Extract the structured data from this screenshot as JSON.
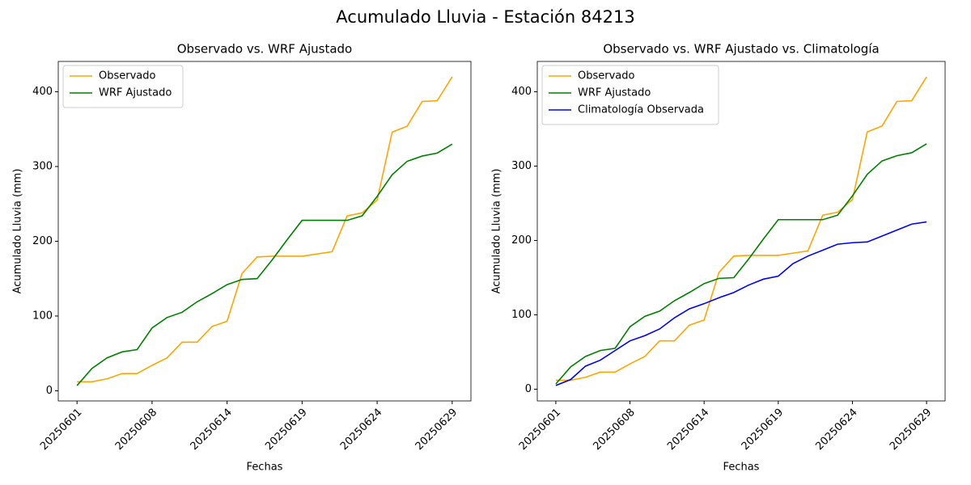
{
  "title": "Acumulado Lluvia - Estación 84213",
  "chart_data": [
    {
      "type": "line",
      "title": "Observado vs. WRF Ajustado",
      "xlabel": "Fechas",
      "ylabel": "Acumulado Lluvia (mm)",
      "categories": [
        "20250601",
        null,
        null,
        null,
        null,
        "20250608",
        null,
        null,
        null,
        null,
        "20250614",
        null,
        null,
        null,
        null,
        "20250619",
        null,
        null,
        null,
        null,
        "20250624",
        null,
        null,
        null,
        null,
        "20250629"
      ],
      "series": [
        {
          "name": "Observado",
          "color": "orange",
          "values": [
            12,
            12,
            16,
            23,
            23,
            34,
            44,
            65,
            65,
            86,
            93,
            157,
            179,
            180,
            180,
            180,
            183,
            186,
            234,
            238,
            255,
            346,
            354,
            387,
            388,
            420
          ]
        },
        {
          "name": "WRF Ajustado",
          "color": "green",
          "values": [
            7,
            30,
            44,
            52,
            55,
            84,
            98,
            105,
            119,
            130,
            142,
            149,
            150,
            175,
            202,
            228,
            228,
            228,
            228,
            234,
            260,
            289,
            307,
            314,
            318,
            330
          ]
        }
      ],
      "ylim": [
        -13.6,
        440.6
      ],
      "yticks": [
        0,
        100,
        200,
        300,
        400
      ],
      "legend": "upper left"
    },
    {
      "type": "line",
      "title": "Observado vs. WRF Ajustado vs. Climatología",
      "xlabel": "Fechas",
      "ylabel": "Acumulado Lluvia (mm)",
      "categories": [
        "20250601",
        null,
        null,
        null,
        null,
        "20250608",
        null,
        null,
        null,
        null,
        "20250614",
        null,
        null,
        null,
        null,
        "20250619",
        null,
        null,
        null,
        null,
        "20250624",
        null,
        null,
        null,
        null,
        "20250629"
      ],
      "series": [
        {
          "name": "Observado",
          "color": "orange",
          "values": [
            12,
            12,
            16,
            23,
            23,
            34,
            44,
            65,
            65,
            86,
            93,
            157,
            179,
            180,
            180,
            180,
            183,
            186,
            234,
            238,
            255,
            346,
            354,
            387,
            388,
            420
          ]
        },
        {
          "name": "WRF Ajustado",
          "color": "green",
          "values": [
            7,
            30,
            44,
            52,
            55,
            84,
            98,
            105,
            119,
            130,
            142,
            149,
            150,
            175,
            202,
            228,
            228,
            228,
            228,
            234,
            260,
            289,
            307,
            314,
            318,
            330
          ]
        },
        {
          "name": "Climatología Observada",
          "color": "blue",
          "values": [
            5,
            13,
            31,
            39,
            52,
            65,
            72,
            81,
            96,
            108,
            115,
            123,
            130,
            140,
            148,
            152,
            169,
            179,
            187,
            195,
            197,
            198,
            206,
            214,
            222,
            225
          ]
        }
      ],
      "ylim": [
        -15.8,
        440.8
      ],
      "yticks": [
        0,
        100,
        200,
        300,
        400
      ],
      "legend": "upper left"
    }
  ]
}
